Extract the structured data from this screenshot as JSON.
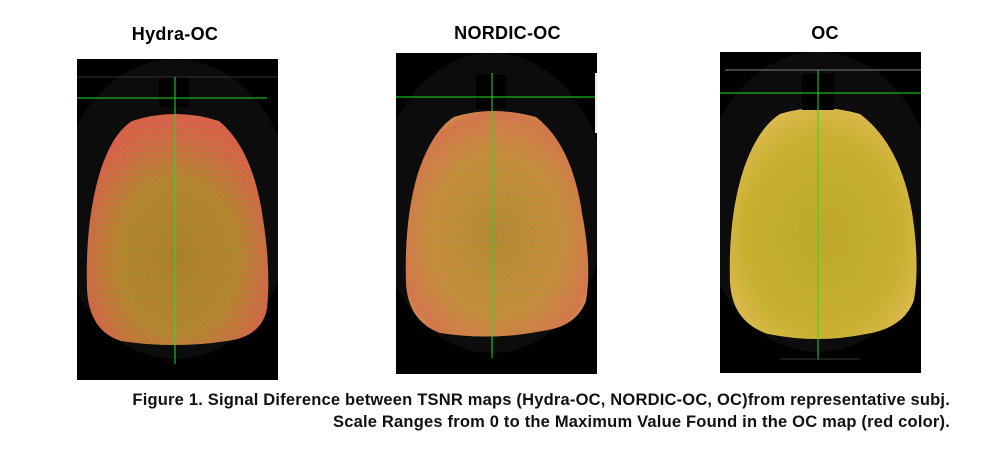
{
  "panels": [
    {
      "title": "Hydra-OC"
    },
    {
      "title": "NORDIC-OC"
    },
    {
      "title": "OC"
    }
  ],
  "caption": {
    "line1": "Figure 1. Signal Diference between TSNR maps (Hydra-OC, NORDIC-OC, OC)from representative subj.",
    "line2": "Scale Ranges from 0 to the Maximum Value Found in the OC map (red color)."
  },
  "colors": {
    "crosshair": "#22dd22",
    "background": "#000000",
    "hydra_base": "#b08a2c",
    "hydra_hot": "#d9604a",
    "nordic_base": "#c09a35",
    "nordic_hot": "#d8784e",
    "oc_base": "#c8b42a",
    "oc_edge": "#e6c060"
  }
}
